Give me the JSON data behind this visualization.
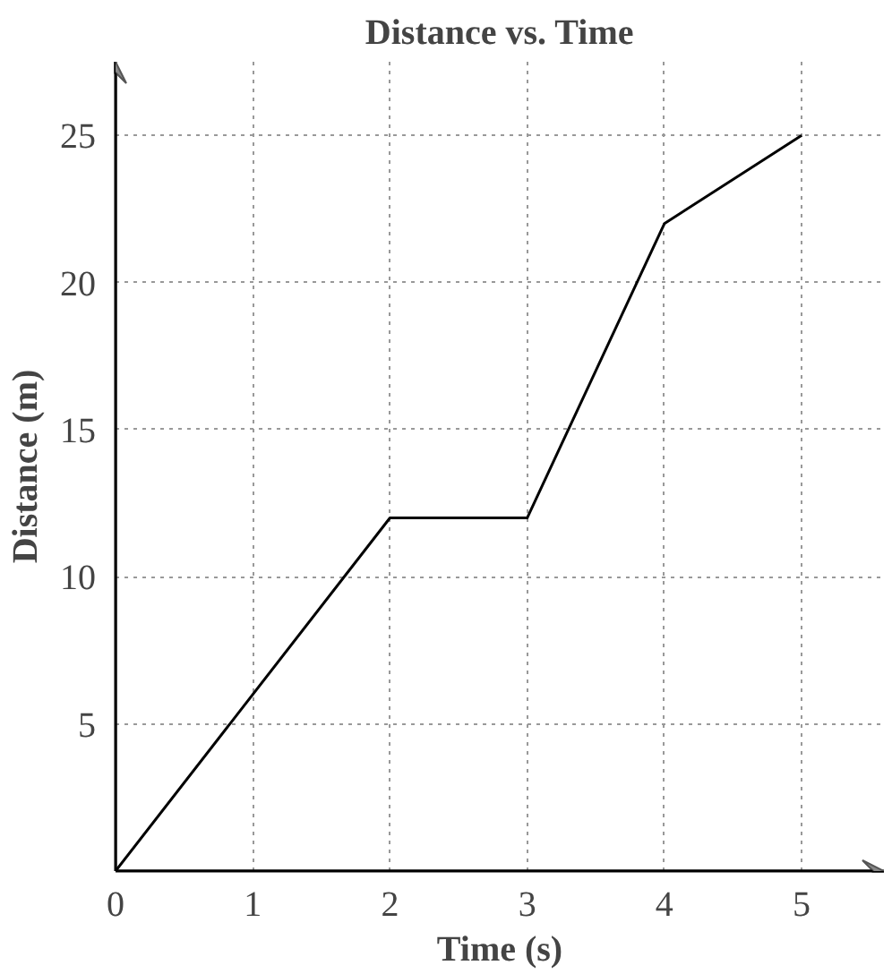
{
  "chart_data": {
    "type": "line",
    "title": "Distance vs. Time",
    "xlabel": "Time (s)",
    "ylabel": "Distance (m)",
    "x": [
      0,
      2,
      3,
      4,
      5
    ],
    "series": [
      {
        "color": "#000000",
        "values": [
          0,
          12,
          12,
          22,
          25
        ]
      }
    ],
    "xlim": [
      0,
      5.6
    ],
    "ylim": [
      0,
      27.5
    ],
    "xticks": [
      0,
      1,
      2,
      3,
      4,
      5
    ],
    "yticks": [
      5,
      10,
      15,
      20,
      25
    ],
    "grid": true,
    "line_style": "solid"
  }
}
